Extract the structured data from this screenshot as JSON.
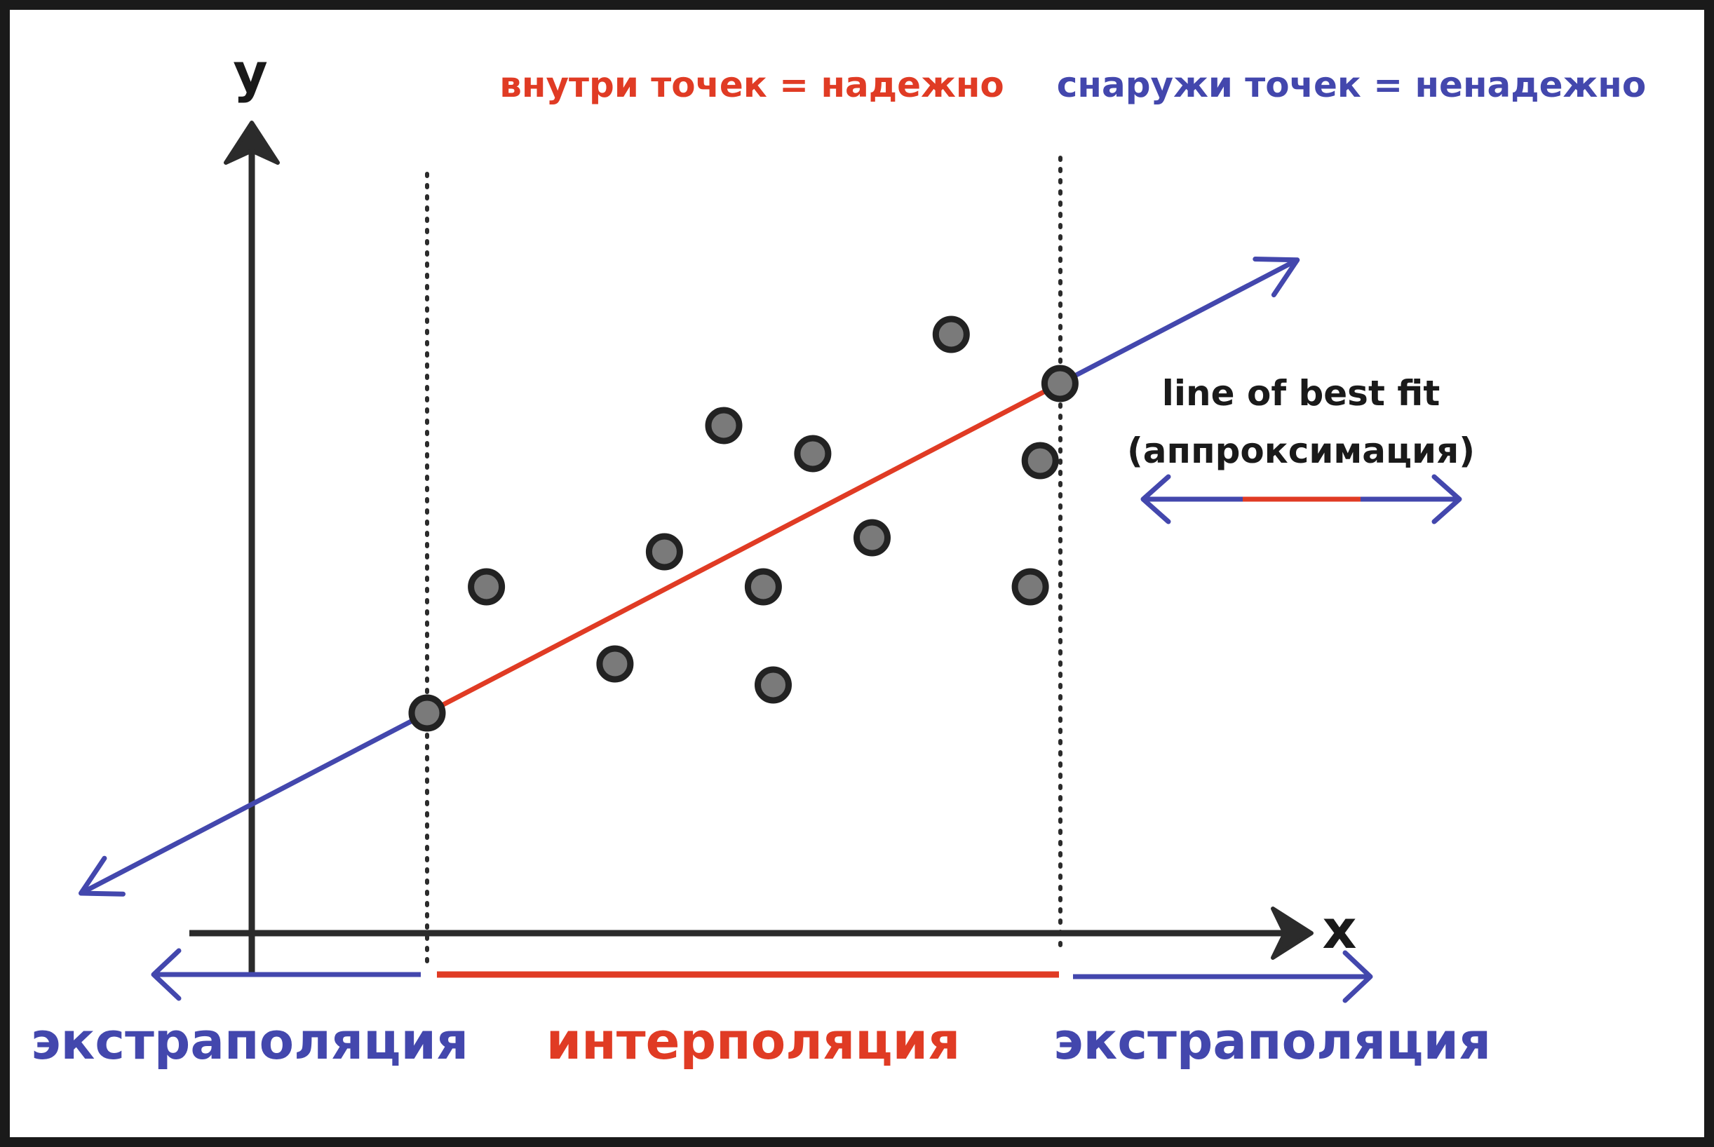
{
  "labels": {
    "axis_y": "y",
    "axis_x": "x",
    "inside_note": "внутри точек = надежно",
    "outside_note": "снаружи точек = ненадежно",
    "legend_line1": "line of best fit",
    "legend_line2": "(аппроксимация)",
    "extrapolation_left": "экстраполяция",
    "interpolation": "интерполяция",
    "extrapolation_right": "экстраполяция"
  },
  "colors": {
    "background": "#ffffff",
    "frame": "#1a1a1a",
    "axis": "#2b2b2b",
    "interpolation": "#e03b24",
    "extrapolation": "#4347ad",
    "point_fill": "#7a7a7a",
    "point_stroke": "#222222",
    "text_dark": "#1a1a1a"
  },
  "chart_data": {
    "type": "scatter",
    "points": [
      [
        0.0,
        0.0
      ],
      [
        0.6,
        1.8
      ],
      [
        2.4,
        2.3
      ],
      [
        1.9,
        0.7
      ],
      [
        3.0,
        4.1
      ],
      [
        3.5,
        0.4
      ],
      [
        3.4,
        1.8
      ],
      [
        3.9,
        3.7
      ],
      [
        4.5,
        2.5
      ],
      [
        5.3,
        5.4
      ],
      [
        6.2,
        3.6
      ],
      [
        6.1,
        1.8
      ],
      [
        6.4,
        4.7
      ]
    ],
    "fit_line": {
      "x_start": -3.5,
      "x_end": 8.8
    },
    "interpolation_range": [
      0.0,
      6.4
    ]
  }
}
